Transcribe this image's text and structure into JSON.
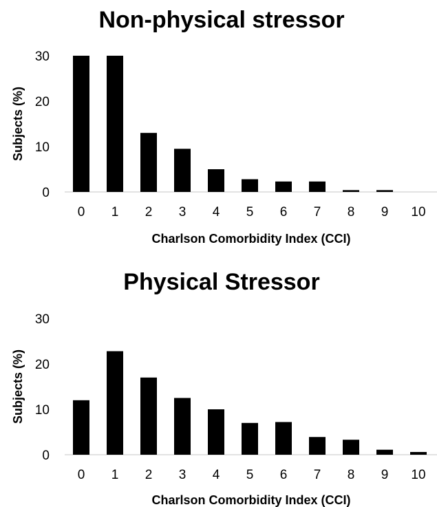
{
  "chart_data": [
    {
      "type": "bar",
      "title": "Non-physical stressor",
      "xlabel": "Charlson Comorbidity Index (CCI)",
      "ylabel": "Subjects (%)",
      "categories": [
        "0",
        "1",
        "2",
        "3",
        "4",
        "5",
        "6",
        "7",
        "8",
        "9",
        "10"
      ],
      "values": [
        30,
        30,
        13,
        9.5,
        5,
        2.8,
        2.3,
        2.3,
        0.4,
        0.4,
        0
      ],
      "yticks": [
        "0",
        "10",
        "20",
        "30"
      ],
      "ylim": [
        0,
        30
      ],
      "grid": false,
      "legend": false,
      "bar_color": "#000000"
    },
    {
      "type": "bar",
      "title": "Physical Stressor",
      "xlabel": "Charlson Comorbidity Index (CCI)",
      "ylabel": "Subjects (%)",
      "categories": [
        "0",
        "1",
        "2",
        "3",
        "4",
        "5",
        "6",
        "7",
        "8",
        "9",
        "10"
      ],
      "values": [
        12,
        22.8,
        17,
        12.5,
        10,
        7,
        7.2,
        3.9,
        3.3,
        1.1,
        0.6
      ],
      "yticks": [
        "0",
        "10",
        "20",
        "30"
      ],
      "ylim": [
        0,
        30
      ],
      "grid": false,
      "legend": false,
      "bar_color": "#000000"
    }
  ]
}
